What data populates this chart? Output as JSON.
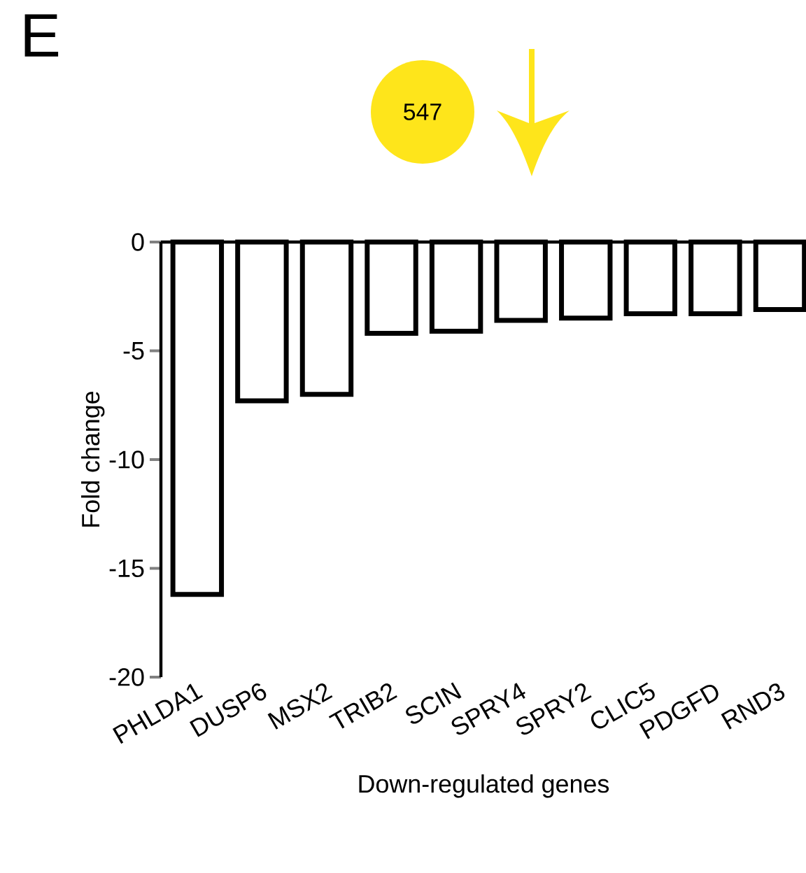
{
  "chart_data": {
    "type": "bar",
    "xlabel": "Down-regulated genes",
    "ylabel": "Fold change",
    "categories": [
      "PHLDA1",
      "DUSP6",
      "MSX2",
      "TRIB2",
      "SCIN",
      "SPRY4",
      "SPRY2",
      "CLIC5",
      "PDGFD",
      "RND3"
    ],
    "values": [
      -16.2,
      -7.3,
      -7.0,
      -4.2,
      -4.1,
      -3.6,
      -3.5,
      -3.3,
      -3.3,
      -3.1
    ],
    "color": "#000000",
    "ylim": [
      -20,
      0
    ],
    "yticks": [
      0,
      -5,
      -10,
      -15,
      -20
    ],
    "annotations": [
      "E",
      "547"
    ]
  }
}
